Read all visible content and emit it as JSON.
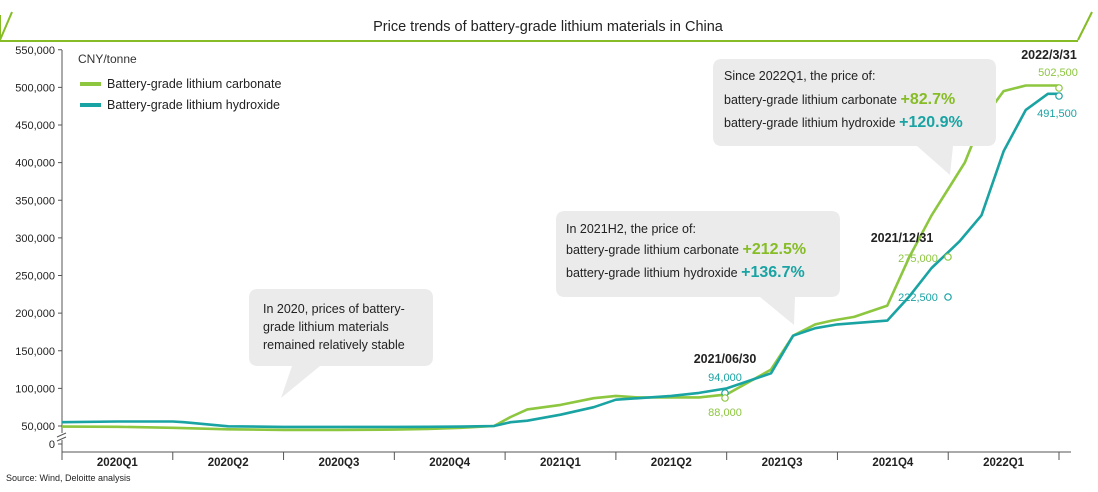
{
  "title": "Price trends of battery-grade lithium materials in China",
  "unit_label": "CNY/tonne",
  "source": "Source: Wind, Deloitte analysis",
  "colors": {
    "carbonate": "#8dc63f",
    "hydroxide": "#1aa3a3",
    "accent": "#86bc25",
    "bubble": "#ebebeb",
    "axis": "#555555"
  },
  "legend": [
    {
      "label": "Battery-grade lithium carbonate",
      "series": "carbonate"
    },
    {
      "label": "Battery-grade lithium hydroxide",
      "series": "hydroxide"
    }
  ],
  "callouts": {
    "c2020": {
      "text": [
        "In 2020, prices of battery-",
        "grade lithium materials",
        "remained relatively stable"
      ]
    },
    "c2021h2": {
      "line1": "In 2021H2, the price of:",
      "carb_label": "battery-grade lithium carbonate",
      "carb_pct": "+212.5%",
      "hyd_label": "battery-grade lithium hydroxide",
      "hyd_pct": "+136.7%"
    },
    "c2022q1": {
      "line1": "Since 2022Q1, the price of:",
      "carb_label": "battery-grade lithium carbonate",
      "carb_pct": "+82.7%",
      "hyd_label": "battery-grade lithium hydroxide",
      "hyd_pct": "+120.9%"
    }
  },
  "chart_data": {
    "type": "line",
    "title": "Price trends of battery-grade lithium materials in China",
    "ylabel": "CNY/tonne",
    "ylim": [
      0,
      550000
    ],
    "y_axis_break": true,
    "y_ticks": [
      "0",
      "50,000",
      "100,000",
      "150,000",
      "200,000",
      "250,000",
      "300,000",
      "350,000",
      "400,000",
      "450,000",
      "500,000",
      "550,000"
    ],
    "categories": [
      "2020Q1",
      "2020Q2",
      "2020Q3",
      "2020Q4",
      "2021Q1",
      "2021Q2",
      "2021Q3",
      "2021Q4",
      "2022Q1"
    ],
    "legend_position": "top-left",
    "grid": false,
    "series": [
      {
        "name": "Battery-grade lithium carbonate",
        "color": "#8dc63f",
        "x": [
          0,
          0.5,
          1.0,
          1.5,
          2.0,
          2.5,
          3.0,
          3.3,
          3.6,
          3.9,
          4.05,
          4.2,
          4.5,
          4.8,
          5.0,
          5.2,
          5.5,
          5.75,
          6.0,
          6.4,
          6.6,
          6.8,
          6.95,
          7.15,
          7.45,
          7.65,
          7.85,
          8.0,
          8.15,
          8.3,
          8.5,
          8.7,
          8.9,
          9.0
        ],
        "y": [
          48000,
          47500,
          44000,
          39000,
          37000,
          37000,
          38000,
          40000,
          44000,
          50000,
          62000,
          72000,
          78000,
          87000,
          90000,
          88000,
          88000,
          88000,
          92000,
          125000,
          170000,
          185000,
          190000,
          195000,
          210000,
          275000,
          330000,
          365000,
          400000,
          455000,
          495000,
          502500,
          502500,
          502500
        ]
      },
      {
        "name": "Battery-grade lithium hydroxide",
        "color": "#1aa3a3",
        "x": [
          0,
          0.5,
          1.0,
          1.1,
          1.5,
          2.0,
          2.5,
          3.0,
          3.3,
          3.6,
          3.9,
          4.05,
          4.2,
          4.5,
          4.8,
          5.0,
          5.5,
          5.75,
          6.0,
          6.4,
          6.6,
          6.8,
          7.0,
          7.45,
          7.65,
          7.85,
          8.1,
          8.3,
          8.5,
          8.7,
          8.9,
          9.0
        ],
        "y": [
          55000,
          56000,
          56000,
          55000,
          49000,
          47000,
          47000,
          47000,
          47500,
          48000,
          50000,
          55000,
          57000,
          65000,
          75000,
          85000,
          90000,
          94000,
          100000,
          120000,
          170000,
          180000,
          185000,
          190000,
          222500,
          260000,
          295000,
          330000,
          415000,
          470000,
          491500,
          491500
        ]
      }
    ],
    "annotations": [
      {
        "date": "2021/06/30",
        "carbonate": "88,000",
        "hydroxide": "94,000"
      },
      {
        "date": "2021/12/31",
        "carbonate": "275,000",
        "hydroxide": "222,500"
      },
      {
        "date": "2022/3/31",
        "carbonate": "502,500",
        "hydroxide": "491,500"
      }
    ]
  }
}
